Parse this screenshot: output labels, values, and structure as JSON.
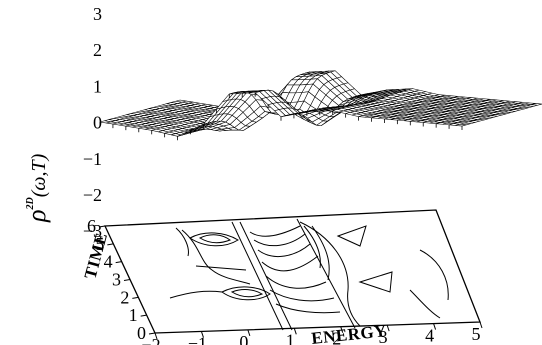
{
  "chart_data": {
    "type": "surface",
    "surface_style": "wireframe-3d-with-contour-base",
    "title": "",
    "z_axis": {
      "label_symbol": "ρ",
      "label_superscript": "2D",
      "label_args": "(ω,T)",
      "ticks": [
        "3",
        "2",
        "1",
        "0",
        "−1",
        "−2",
        "−3"
      ],
      "range": [
        -3,
        3
      ]
    },
    "x_axis": {
      "label": "ENERGY",
      "ticks": [
        "−2",
        "−1",
        "0",
        "1",
        "2",
        "3",
        "4",
        "5"
      ],
      "range": [
        -2,
        5
      ]
    },
    "y_axis": {
      "label": "TIME",
      "ticks": [
        "0",
        "1",
        "2",
        "3",
        "4",
        "5",
        "6"
      ],
      "range": [
        0,
        6
      ]
    },
    "surface_profile": {
      "energy": [
        -2.0,
        -1.0,
        -0.5,
        0.0,
        0.5,
        1.0,
        1.5,
        2.0,
        2.5,
        3.0,
        4.0,
        5.0
      ],
      "value": [
        0.0,
        -0.1,
        -0.2,
        0.2,
        1.1,
        1.2,
        0.6,
        0.8,
        0.9,
        0.8,
        0.8,
        0.8
      ]
    },
    "contour_base": true,
    "grid": false
  }
}
